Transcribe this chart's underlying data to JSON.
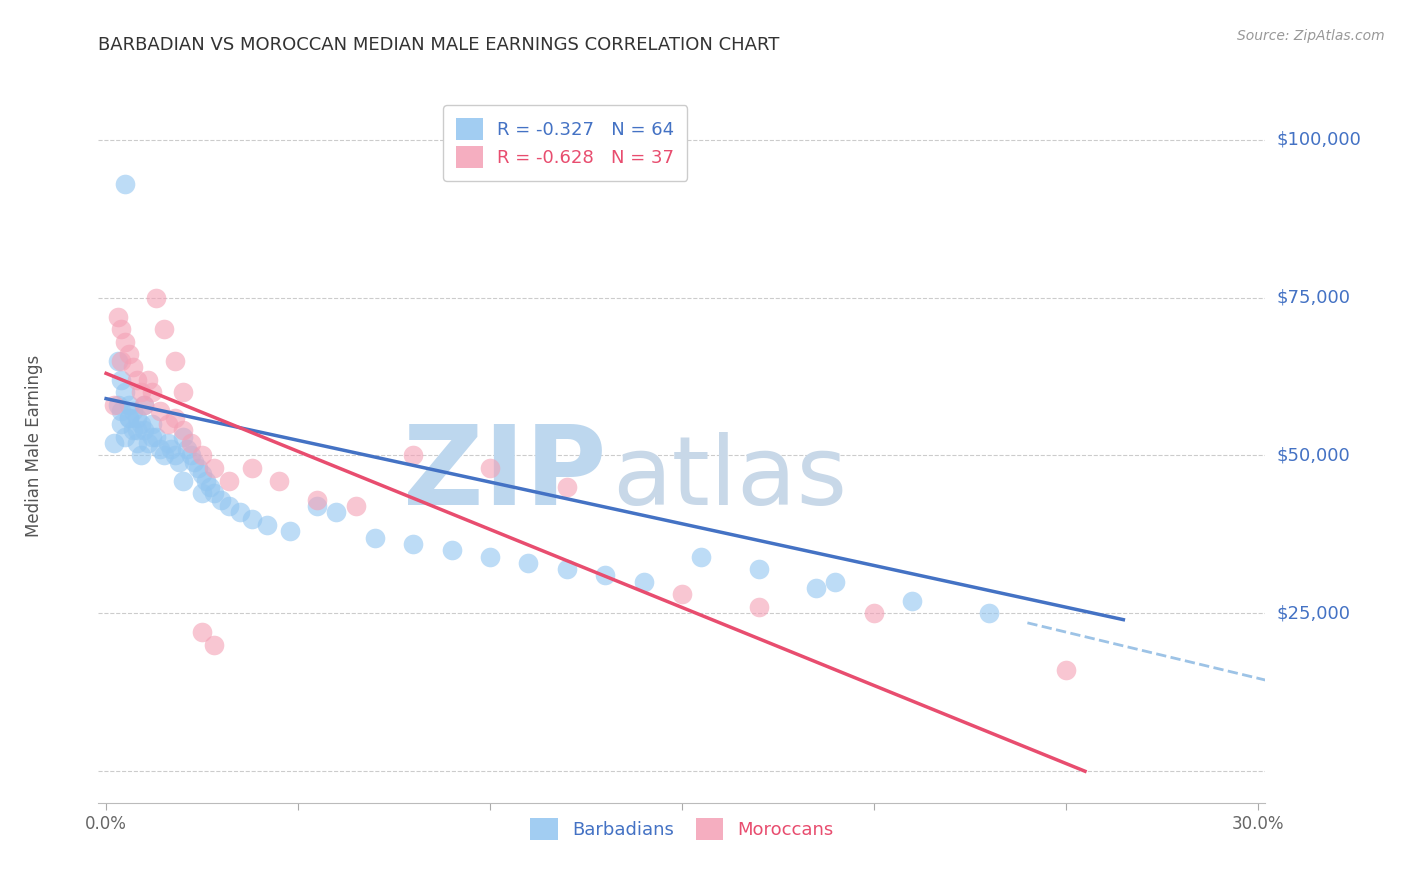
{
  "title": "BARBADIAN VS MOROCCAN MEDIAN MALE EARNINGS CORRELATION CHART",
  "source": "Source: ZipAtlas.com",
  "ylabel": "Median Male Earnings",
  "watermark_zip": "ZIP",
  "watermark_atlas": "atlas",
  "xlim": [
    -0.002,
    0.302
  ],
  "ylim": [
    -5000,
    108000
  ],
  "ytick_vals": [
    0,
    25000,
    50000,
    75000,
    100000
  ],
  "ytick_labels": [
    "",
    "$25,000",
    "$50,000",
    "$75,000",
    "$100,000"
  ],
  "xtick_vals": [
    0.0,
    0.05,
    0.1,
    0.15,
    0.2,
    0.25,
    0.3
  ],
  "legend_entries": [
    {
      "label": "R = -0.327   N = 64",
      "color": "#92C5F0"
    },
    {
      "label": "R = -0.628   N = 37",
      "color": "#F4A0B5"
    }
  ],
  "barbadians_x": [
    0.002,
    0.003,
    0.003,
    0.004,
    0.004,
    0.005,
    0.005,
    0.006,
    0.006,
    0.007,
    0.007,
    0.008,
    0.008,
    0.009,
    0.009,
    0.01,
    0.01,
    0.011,
    0.012,
    0.013,
    0.014,
    0.015,
    0.016,
    0.017,
    0.018,
    0.019,
    0.02,
    0.021,
    0.022,
    0.023,
    0.024,
    0.025,
    0.026,
    0.027,
    0.028,
    0.03,
    0.032,
    0.035,
    0.038,
    0.042,
    0.048,
    0.055,
    0.06,
    0.07,
    0.08,
    0.09,
    0.1,
    0.11,
    0.12,
    0.13,
    0.14,
    0.155,
    0.17,
    0.19,
    0.21,
    0.23,
    0.004,
    0.006,
    0.008,
    0.012,
    0.02,
    0.025,
    0.185,
    0.005
  ],
  "barbadians_y": [
    52000,
    65000,
    58000,
    62000,
    55000,
    60000,
    53000,
    58000,
    56000,
    57000,
    54000,
    56000,
    52000,
    55000,
    50000,
    58000,
    54000,
    52000,
    55000,
    53000,
    51000,
    50000,
    52000,
    51000,
    50000,
    49000,
    53000,
    51000,
    50000,
    49000,
    48000,
    47000,
    46000,
    45000,
    44000,
    43000,
    42000,
    41000,
    40000,
    39000,
    38000,
    42000,
    41000,
    37000,
    36000,
    35000,
    34000,
    33000,
    32000,
    31000,
    30000,
    34000,
    32000,
    30000,
    27000,
    25000,
    57000,
    56000,
    54000,
    53000,
    46000,
    44000,
    29000,
    93000
  ],
  "moroccans_x": [
    0.002,
    0.003,
    0.004,
    0.004,
    0.005,
    0.006,
    0.007,
    0.008,
    0.009,
    0.01,
    0.011,
    0.012,
    0.014,
    0.016,
    0.018,
    0.02,
    0.022,
    0.025,
    0.028,
    0.032,
    0.038,
    0.045,
    0.055,
    0.065,
    0.08,
    0.1,
    0.12,
    0.15,
    0.17,
    0.2,
    0.013,
    0.015,
    0.018,
    0.02,
    0.025,
    0.028,
    0.25
  ],
  "moroccans_y": [
    58000,
    72000,
    70000,
    65000,
    68000,
    66000,
    64000,
    62000,
    60000,
    58000,
    62000,
    60000,
    57000,
    55000,
    56000,
    54000,
    52000,
    50000,
    48000,
    46000,
    48000,
    46000,
    43000,
    42000,
    50000,
    48000,
    45000,
    28000,
    26000,
    25000,
    75000,
    70000,
    65000,
    60000,
    22000,
    20000,
    16000
  ],
  "blue_line_x": [
    0.0,
    0.265
  ],
  "blue_line_y": [
    59000,
    24000
  ],
  "pink_line_x": [
    0.0,
    0.255
  ],
  "pink_line_y": [
    63000,
    0
  ],
  "dashed_line_x": [
    0.24,
    0.305
  ],
  "dashed_line_y": [
    23500,
    14000
  ],
  "background_color": "#FFFFFF",
  "grid_color": "#CCCCCC",
  "title_color": "#333333",
  "ylabel_color": "#555555",
  "ytick_color": "#4472C4",
  "xtick_color": "#666666",
  "blue_scatter_color": "#92C5F0",
  "pink_scatter_color": "#F4A0B5",
  "blue_line_color": "#4472C4",
  "pink_line_color": "#E84D6F",
  "dashed_line_color": "#9DC3E6",
  "watermark_zip_color": "#BDD7EE",
  "watermark_atlas_color": "#C8D8E8"
}
